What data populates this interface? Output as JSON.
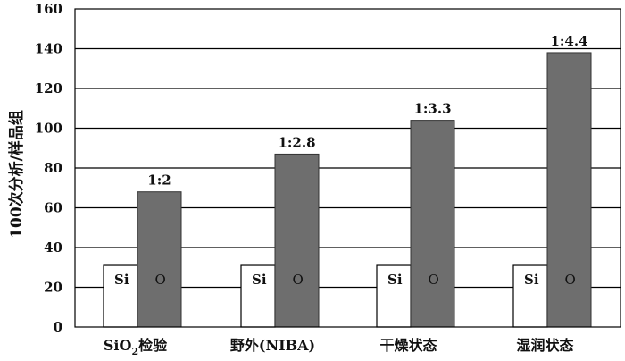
{
  "chart_data": {
    "type": "bar",
    "ylabel": "100次分析/样品组",
    "ylim": [
      0,
      160
    ],
    "yticks": [
      0,
      20,
      40,
      60,
      80,
      100,
      120,
      140,
      160
    ],
    "grid": true,
    "categories": [
      {
        "main": "SiO",
        "sub": "2",
        "rest": "检验"
      },
      {
        "main": "野外(NIBA)",
        "sub": "",
        "rest": ""
      },
      {
        "main": "干燥状态",
        "sub": "",
        "rest": ""
      },
      {
        "main": "湿润状态",
        "sub": "",
        "rest": ""
      }
    ],
    "series": [
      {
        "name": "Si",
        "values": [
          31,
          31,
          31,
          31
        ],
        "color": "#ffffff"
      },
      {
        "name": "O",
        "values": [
          68,
          87,
          104,
          138
        ],
        "color": "#6e6e6e"
      }
    ],
    "ratios": [
      "1:2",
      "1:2.8",
      "1:3.3",
      "1:4.4"
    ]
  }
}
